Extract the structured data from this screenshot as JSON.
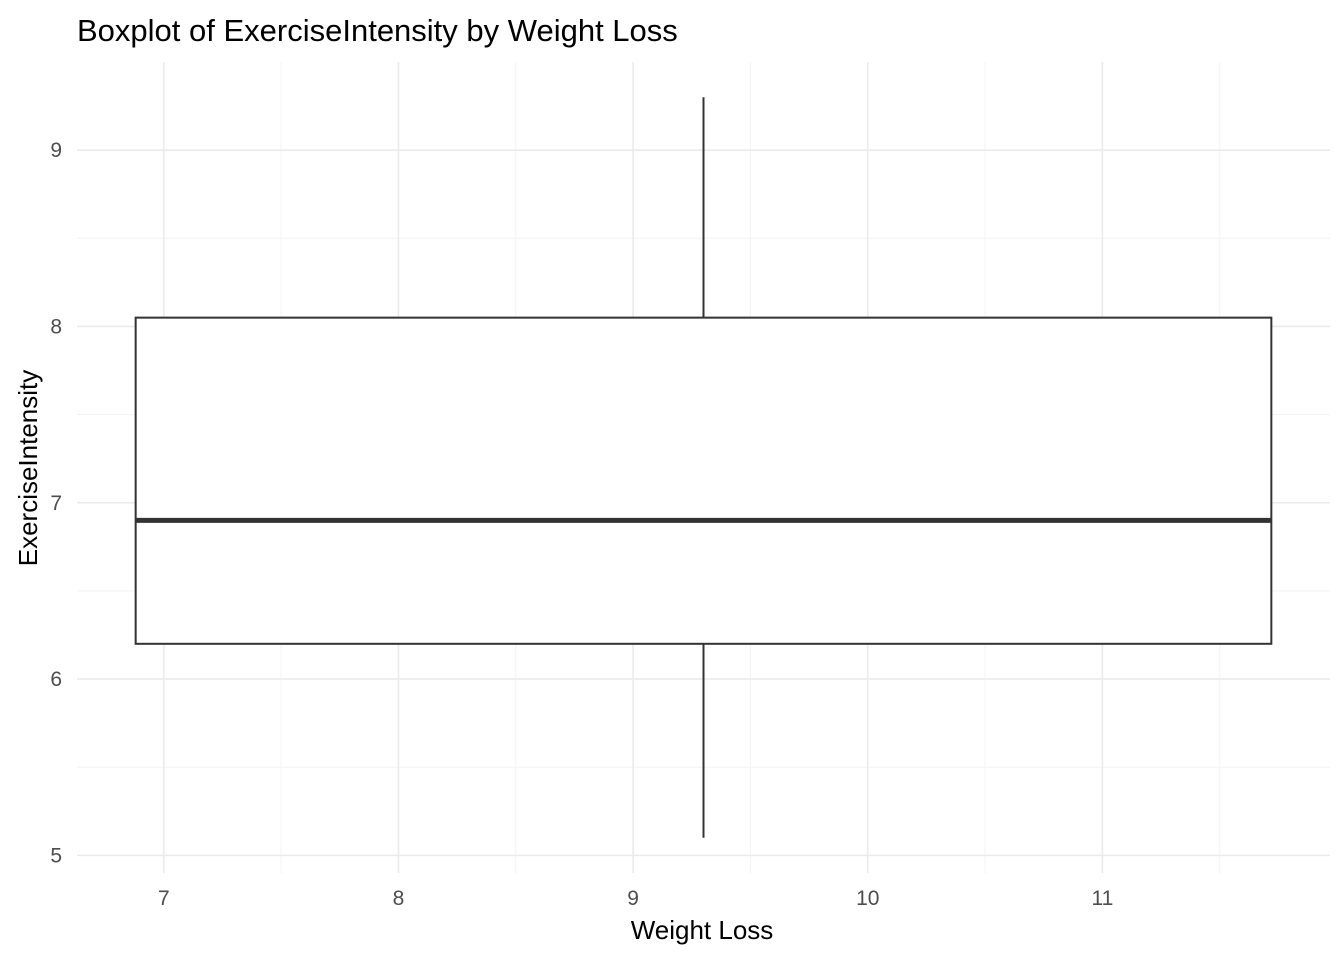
{
  "chart_data": {
    "type": "boxplot",
    "title": "Boxplot of ExerciseIntensity by Weight Loss",
    "xlabel": "Weight Loss",
    "ylabel": "ExerciseIntensity",
    "xlim": [
      6.63,
      11.97
    ],
    "ylim": [
      4.9,
      9.5
    ],
    "x_ticks": [
      7,
      8,
      9,
      10,
      11
    ],
    "y_ticks": [
      5,
      6,
      7,
      8,
      9
    ],
    "grid": true,
    "box": {
      "x_left": 6.88,
      "x_right": 11.72,
      "x_center": 9.3,
      "q1": 6.2,
      "median": 6.9,
      "q3": 8.05,
      "whisker_low": 5.1,
      "whisker_high": 9.3
    },
    "colors": {
      "grid_major": "#ebebeb",
      "grid_minor": "#f3f3f3",
      "box_stroke": "#333333",
      "tick_text": "#4d4d4d"
    }
  }
}
